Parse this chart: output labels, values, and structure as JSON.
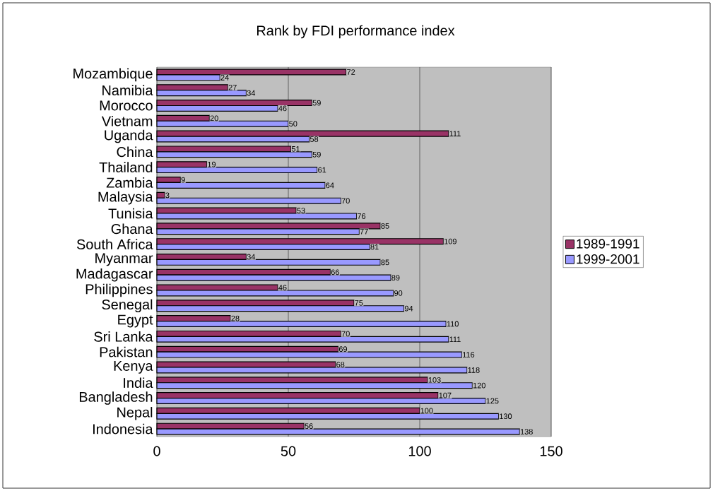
{
  "chart_data": {
    "type": "bar",
    "orientation": "horizontal",
    "title": "Rank by FDI performance index",
    "categories": [
      "Mozambique",
      "Namibia",
      "Morocco",
      "Vietnam",
      "Uganda",
      "China",
      "Thailand",
      "Zambia",
      "Malaysia",
      "Tunisia",
      "Ghana",
      "South Africa",
      "Myanmar",
      "Madagascar",
      "Philippines",
      "Senegal",
      "Egypt",
      "Sri Lanka",
      "Pakistan",
      "Kenya",
      "India",
      "Bangladesh",
      "Nepal",
      "Indonesia"
    ],
    "series": [
      {
        "name": "1989-1991",
        "color": "#993366",
        "values": [
          72,
          27,
          59,
          20,
          111,
          51,
          19,
          9,
          3,
          53,
          85,
          109,
          34,
          66,
          46,
          75,
          28,
          70,
          69,
          68,
          103,
          107,
          100,
          56
        ]
      },
      {
        "name": "1999-2001",
        "color": "#9999ff",
        "values": [
          24,
          34,
          46,
          50,
          58,
          59,
          61,
          64,
          70,
          76,
          77,
          81,
          85,
          89,
          90,
          94,
          110,
          111,
          116,
          118,
          120,
          125,
          130,
          138
        ]
      }
    ],
    "xlim": [
      0,
      150
    ],
    "xticks": [
      0,
      50,
      100,
      150
    ],
    "grid": "x",
    "legend": "right",
    "data_labels": true
  }
}
